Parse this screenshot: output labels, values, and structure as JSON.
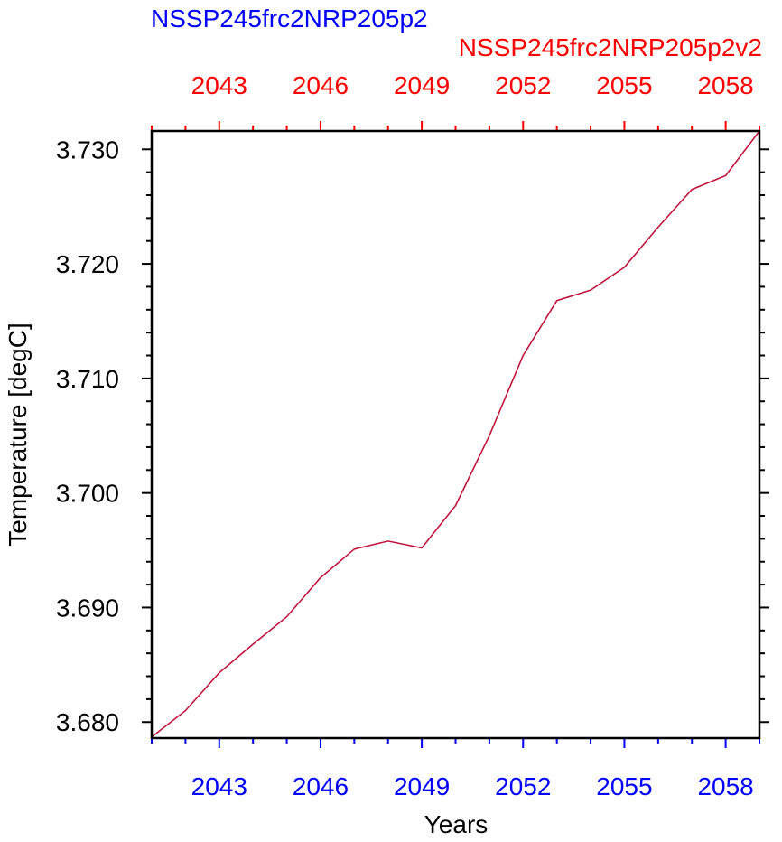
{
  "chart_data": {
    "type": "line",
    "left_title": "NSSP245frc2NRP205p2",
    "right_title": "NSSP245frc2NRP205p2v2",
    "xlabel": "Years",
    "ylabel": "Temperature [degC]",
    "xlim": [
      2041,
      2059
    ],
    "ylim": [
      3.6786,
      3.7316
    ],
    "x_ticks": [
      2043,
      2046,
      2049,
      2052,
      2055,
      2058
    ],
    "x_tick_labels": [
      "2043",
      "2046",
      "2049",
      "2052",
      "2055",
      "2058"
    ],
    "y_ticks": [
      3.68,
      3.69,
      3.7,
      3.71,
      3.72,
      3.73
    ],
    "y_tick_labels": [
      "3.680",
      "3.690",
      "3.700",
      "3.710",
      "3.720",
      "3.730"
    ],
    "colors": {
      "bottom_axis": "#0000ff",
      "top_axis": "#ff0000",
      "line": "#c0143c",
      "frame": "#000000"
    },
    "series": [
      {
        "x": [
          2041,
          2042,
          2043,
          2044,
          2045,
          2046,
          2047,
          2048,
          2049,
          2050,
          2051,
          2052,
          2053,
          2054,
          2055,
          2056,
          2057,
          2058,
          2059
        ],
        "values": [
          3.6787,
          3.681,
          3.6843,
          3.6868,
          3.6892,
          3.6926,
          3.6951,
          3.6958,
          3.6952,
          3.6989,
          3.705,
          3.712,
          3.7168,
          3.7177,
          3.7197,
          3.7232,
          3.7265,
          3.7277,
          3.7316
        ]
      }
    ]
  }
}
